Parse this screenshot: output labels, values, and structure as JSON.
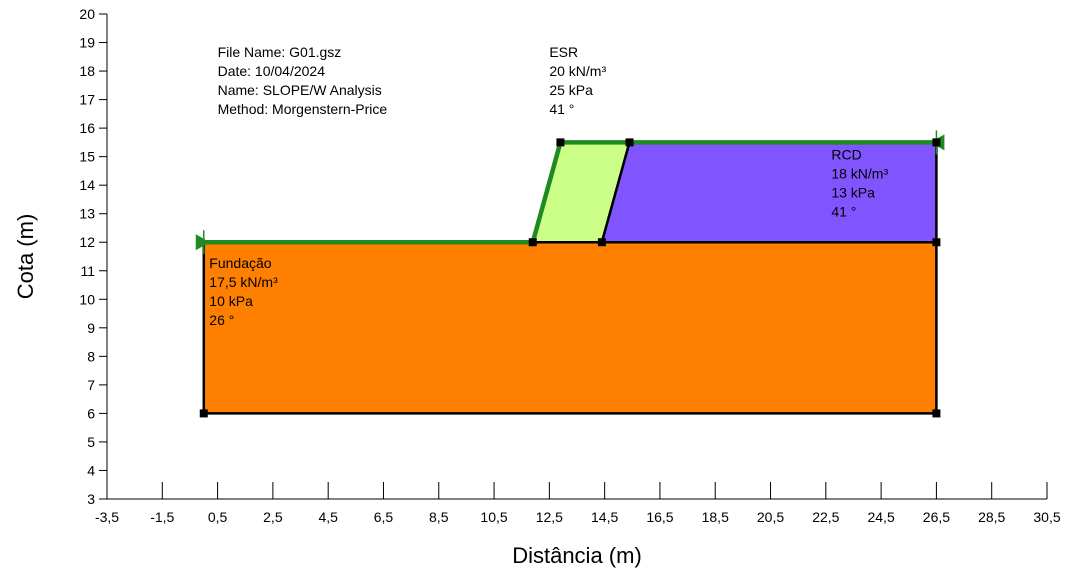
{
  "chart_data": {
    "type": "diagram",
    "xlabel": "Distância (m)",
    "ylabel": "Cota (m)",
    "xlim": [
      -3.5,
      30.5
    ],
    "ylim": [
      3,
      20
    ],
    "x_ticks": [
      "-3,5",
      "-1,5",
      "0,5",
      "2,5",
      "4,5",
      "6,5",
      "8,5",
      "10,5",
      "12,5",
      "14,5",
      "16,5",
      "18,5",
      "20,5",
      "22,5",
      "24,5",
      "26,5",
      "28,5",
      "30,5"
    ],
    "x_tick_values": [
      -3.5,
      -1.5,
      0.5,
      2.5,
      4.5,
      6.5,
      8.5,
      10.5,
      12.5,
      14.5,
      16.5,
      18.5,
      20.5,
      22.5,
      24.5,
      26.5,
      28.5,
      30.5
    ],
    "y_ticks": [
      "3",
      "4",
      "5",
      "6",
      "7",
      "8",
      "9",
      "10",
      "11",
      "12",
      "13",
      "14",
      "15",
      "16",
      "17",
      "18",
      "19",
      "20"
    ],
    "y_tick_values": [
      3,
      4,
      5,
      6,
      7,
      8,
      9,
      10,
      11,
      12,
      13,
      14,
      15,
      16,
      17,
      18,
      19,
      20
    ],
    "regions": [
      {
        "name": "Fundação",
        "color": "#ff7f00",
        "points": [
          [
            0,
            6
          ],
          [
            26.5,
            6
          ],
          [
            26.5,
            12
          ],
          [
            14.4,
            12
          ],
          [
            11.9,
            12
          ],
          [
            0,
            12
          ]
        ],
        "labels": [
          "Fundação",
          "17,5 kN/m³",
          "10 kPa",
          "26 °"
        ],
        "label_anchor": [
          0.2,
          11.1
        ]
      },
      {
        "name": "ESR",
        "color": "#ccff88",
        "points": [
          [
            11.9,
            12
          ],
          [
            12.9,
            15.5
          ],
          [
            15.4,
            15.5
          ],
          [
            14.4,
            12
          ]
        ],
        "labels": [
          "ESR",
          "20 kN/m³",
          "25 kPa",
          "41 °"
        ],
        "label_anchor": [
          12.5,
          18.5
        ]
      },
      {
        "name": "RCD",
        "color": "#8055ff",
        "points": [
          [
            14.4,
            12
          ],
          [
            15.4,
            15.5
          ],
          [
            26.5,
            15.5
          ],
          [
            26.5,
            12
          ]
        ],
        "labels": [
          "RCD",
          "18 kN/m³",
          "13 kPa",
          "41 °"
        ],
        "label_anchor": [
          22.7,
          14.9
        ]
      }
    ],
    "surface": [
      [
        0,
        12
      ],
      [
        11.9,
        12
      ],
      [
        12.9,
        15.5
      ],
      [
        26.5,
        15.5
      ]
    ],
    "surface_color": "#1f8a1f",
    "nodes": [
      [
        0,
        6
      ],
      [
        26.5,
        6
      ],
      [
        26.5,
        12
      ],
      [
        14.4,
        12
      ],
      [
        11.9,
        12
      ],
      [
        12.9,
        15.5
      ],
      [
        15.4,
        15.5
      ],
      [
        26.5,
        15.5
      ]
    ],
    "info": [
      "File Name: G01.gsz",
      "Date: 10/04/2024",
      "Name: SLOPE/W Analysis",
      "Method: Morgenstern-Price"
    ],
    "info_anchor": [
      0.5,
      18.5
    ]
  }
}
